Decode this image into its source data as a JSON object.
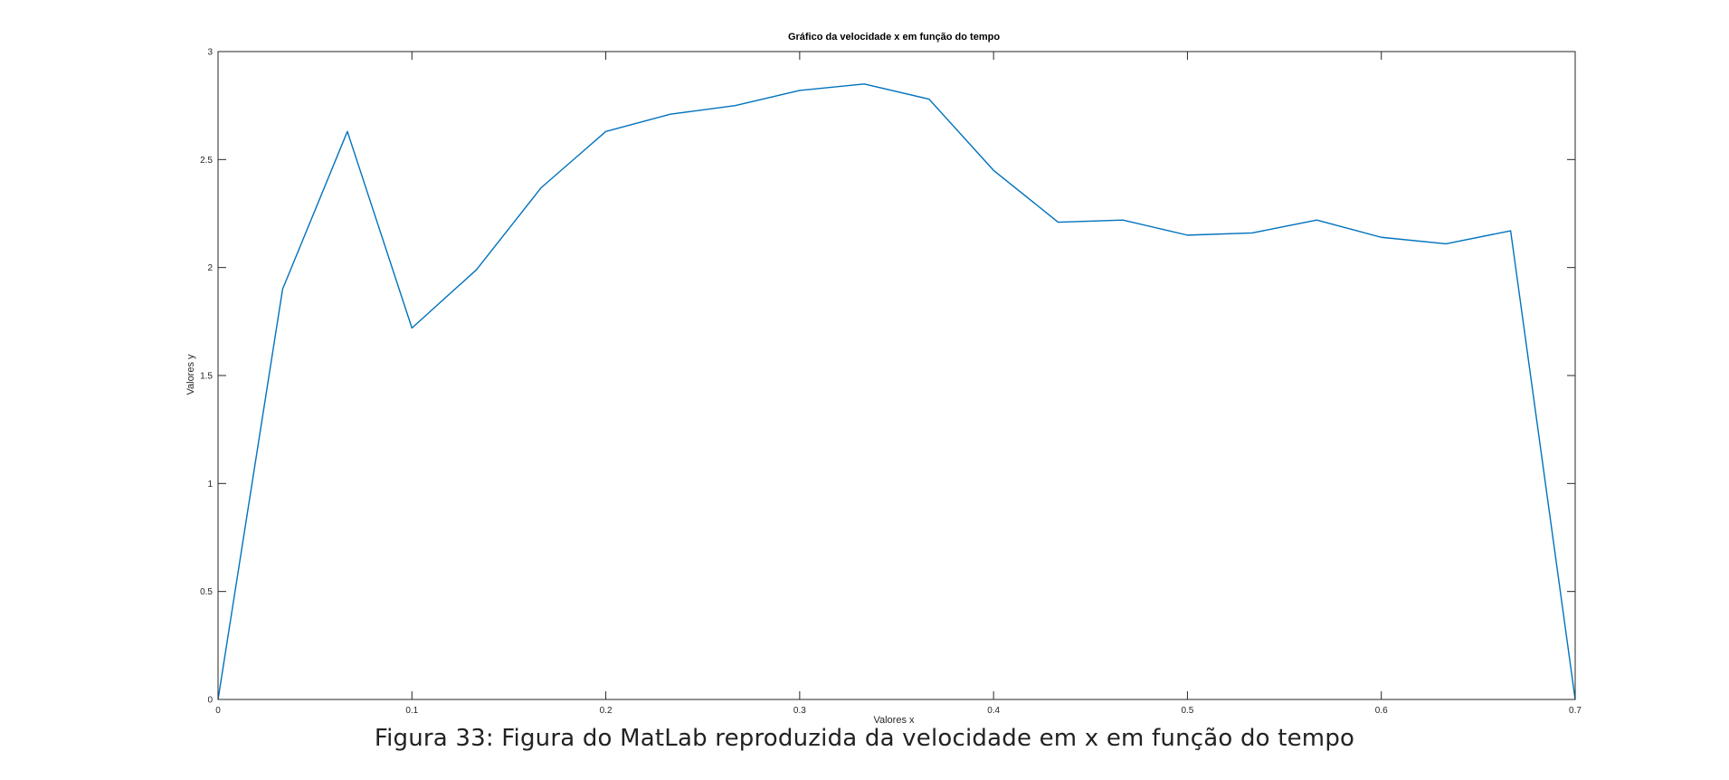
{
  "chart_data": {
    "type": "line",
    "title": "Gráfico da velocidade x em função do tempo",
    "xlabel": "Valores x",
    "ylabel": "Valores y",
    "xlim": [
      0,
      0.7
    ],
    "ylim": [
      0,
      3
    ],
    "xticks": [
      "0",
      "0.1",
      "0.2",
      "0.3",
      "0.4",
      "0.5",
      "0.6",
      "0.7"
    ],
    "yticks": [
      "0",
      "0.5",
      "1",
      "1.5",
      "2",
      "2.5",
      "3"
    ],
    "grid": false,
    "series": [
      {
        "color": "#0072bd",
        "x": [
          0,
          0.0333,
          0.0667,
          0.1,
          0.1333,
          0.1667,
          0.2,
          0.2333,
          0.2667,
          0.3,
          0.3333,
          0.3667,
          0.4,
          0.4333,
          0.4667,
          0.5,
          0.5333,
          0.5667,
          0.6,
          0.6333,
          0.6667,
          0.7
        ],
        "y": [
          0,
          1.9,
          2.63,
          1.72,
          1.99,
          2.37,
          2.63,
          2.71,
          2.75,
          2.82,
          2.85,
          2.78,
          2.45,
          2.21,
          2.22,
          2.15,
          2.16,
          2.22,
          2.14,
          2.11,
          2.17,
          0
        ]
      }
    ]
  },
  "caption": "Figura 33: Figura do MatLab reproduzida da velocidade em x em função do tempo"
}
